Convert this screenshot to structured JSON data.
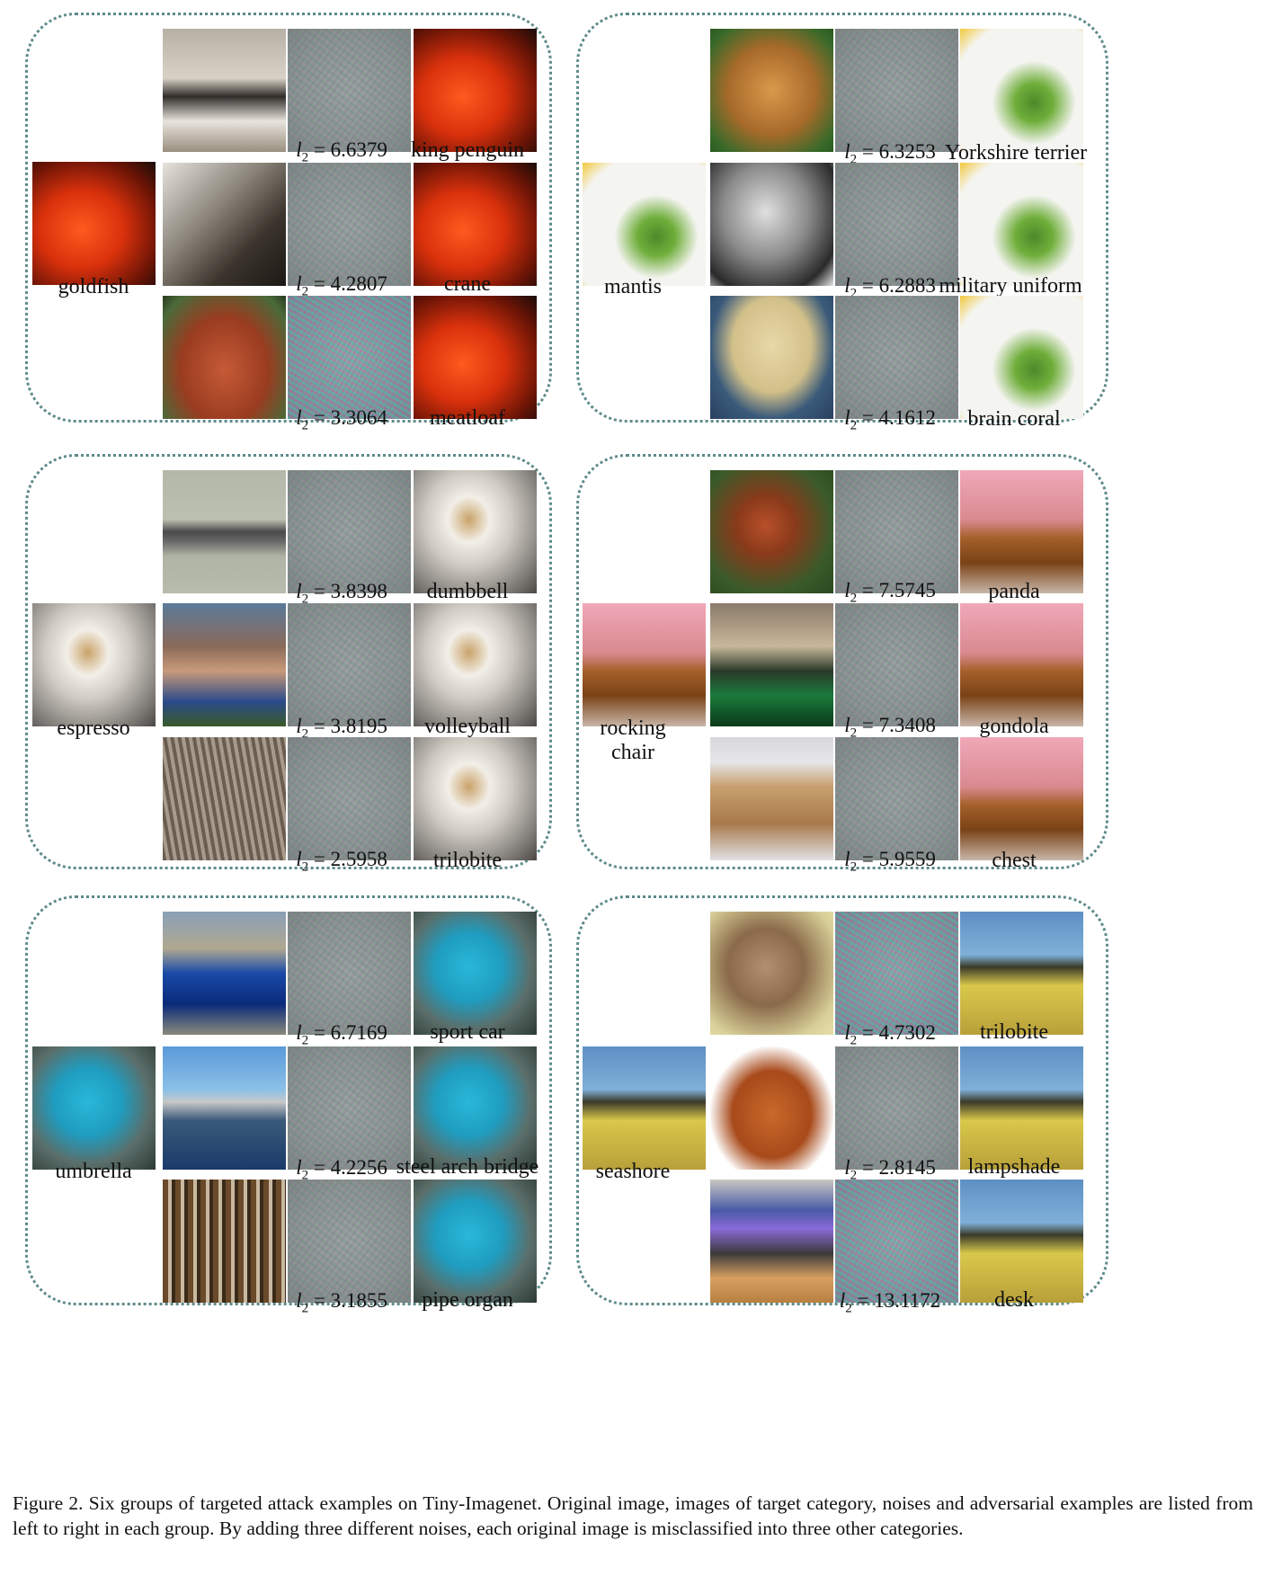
{
  "groups": [
    {
      "source_label": "goldfish",
      "rows": [
        {
          "l2_value": "6.6379",
          "target_label": "king penguin"
        },
        {
          "l2_value": "4.2807",
          "target_label": "crane"
        },
        {
          "l2_value": "3.3064",
          "target_label": "meatloaf"
        }
      ]
    },
    {
      "source_label": "mantis",
      "rows": [
        {
          "l2_value": "6.3253",
          "target_label": "Yorkshire terrier"
        },
        {
          "l2_value": "6.2883",
          "target_label": "military uniform"
        },
        {
          "l2_value": "4.1612",
          "target_label": "brain coral"
        }
      ]
    },
    {
      "source_label": "espresso",
      "rows": [
        {
          "l2_value": "3.8398",
          "target_label": "dumbbell"
        },
        {
          "l2_value": "3.8195",
          "target_label": "volleyball"
        },
        {
          "l2_value": "2.5958",
          "target_label": "trilobite"
        }
      ]
    },
    {
      "source_label_line1": "rocking",
      "source_label_line2": "chair",
      "rows": [
        {
          "l2_value": "7.5745",
          "target_label": "panda"
        },
        {
          "l2_value": "7.3408",
          "target_label": "gondola"
        },
        {
          "l2_value": "5.9559",
          "target_label": "chest"
        }
      ]
    },
    {
      "source_label": "umbrella",
      "rows": [
        {
          "l2_value": "6.7169",
          "target_label": "sport car"
        },
        {
          "l2_value": "4.2256",
          "target_label": "steel arch bridge"
        },
        {
          "l2_value": "3.1855",
          "target_label": "pipe organ"
        }
      ]
    },
    {
      "source_label": "seashore",
      "rows": [
        {
          "l2_value": "4.7302",
          "target_label": "trilobite"
        },
        {
          "l2_value": "2.8145",
          "target_label": "lampshade"
        },
        {
          "l2_value": "13.1172",
          "target_label": "desk"
        }
      ]
    }
  ],
  "l2_symbol": "l",
  "l2_subscript": "2",
  "l2_equals": " = ",
  "caption": "Figure 2. Six groups of targeted attack examples on Tiny-Imagenet. Original image, images of target category, noises and adversarial examples are listed from left to right in each group. By adding three different noises, each original image is misclassified into three other categories."
}
